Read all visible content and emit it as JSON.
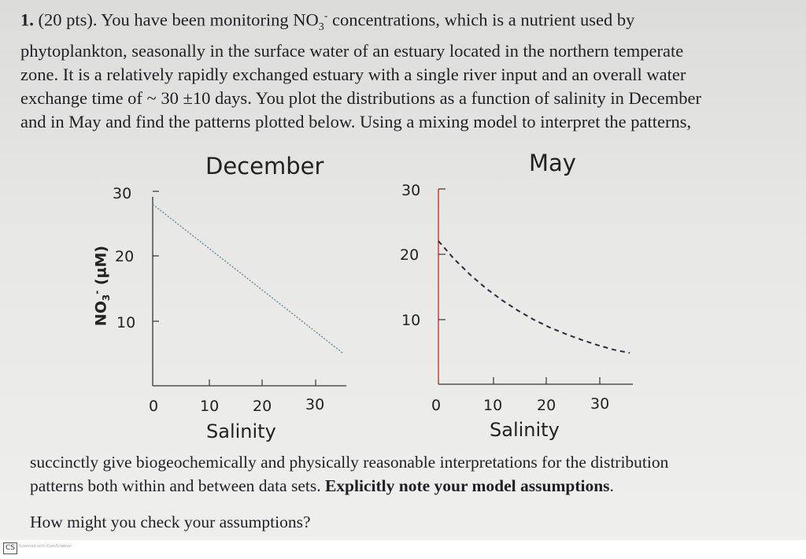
{
  "problem": {
    "number": "1.",
    "points": "(20 pts).",
    "line1": "You have been monitoring NO",
    "line1b": " concentrations, which is a nutrient used by",
    "line2": "phytoplankton, seasonally in the surface water of an estuary located in the northern temperate",
    "line3": "zone.  It is a relatively rapidly exchanged estuary with a single river input and an overall water",
    "line4": "exchange time of ~ 30 ±10 days.  You plot the distributions as a function of salinity in December",
    "line5": "and in May and find the patterns plotted below.  Using a mixing model to interpret the patterns,"
  },
  "ylabel": {
    "main": "NO",
    "sub": "3",
    "sup": "-",
    "unit": " (µM)"
  },
  "chart_data": [
    {
      "type": "line",
      "title": "December",
      "xlabel": "Salinity",
      "ylabel": "NO3- (µM)",
      "x": [
        0,
        36
      ],
      "y": [
        28,
        5
      ],
      "xlim": [
        0,
        36
      ],
      "ylim": [
        0,
        30
      ],
      "xticks": [
        "0",
        "10",
        "20",
        "30"
      ],
      "yticks": [
        "10",
        "20",
        "30"
      ],
      "style": "dotted"
    },
    {
      "type": "line",
      "title": "May",
      "xlabel": "Salinity",
      "ylabel": "NO3- (µM)",
      "x": [
        0,
        3,
        6,
        9,
        12,
        15,
        18,
        21,
        24,
        27,
        30,
        33,
        36
      ],
      "y": [
        22,
        19.2,
        16.8,
        14.7,
        12.9,
        11.3,
        9.9,
        8.7,
        7.7,
        6.8,
        6.0,
        5.3,
        4.8
      ],
      "xlim": [
        0,
        36
      ],
      "ylim": [
        0,
        30
      ],
      "xticks": [
        "0",
        "10",
        "20",
        "30"
      ],
      "yticks": [
        "10",
        "20",
        "30"
      ],
      "style": "dashed"
    }
  ],
  "continuation": {
    "line1": "succinctly give biogeochemically and physically reasonable interpretations for the distribution",
    "line2a": "patterns both within and between data sets.  ",
    "line2b": "Explicitly note your model assumptions",
    "line2c": "."
  },
  "question": "How might you check your assumptions?",
  "footer": {
    "logo": "CS",
    "text": "Scanned with CamScanner"
  },
  "colors": {
    "axis": "#333333",
    "dec_line": "#6a8a96",
    "may_line": "#2a2a3a",
    "may_yaxis": "#c0392b"
  }
}
